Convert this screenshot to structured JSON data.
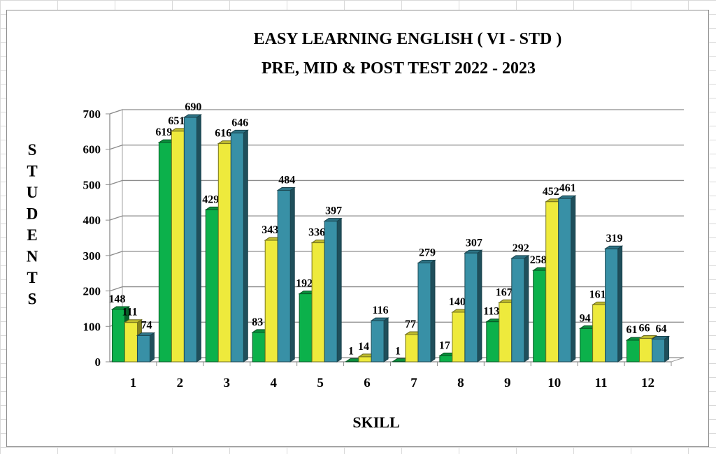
{
  "chart_data": {
    "type": "bar",
    "title": [
      "EASY LEARNING ENGLISH ( VI - STD )",
      "PRE, MID & POST TEST 2022 - 2023"
    ],
    "xlabel": "SKILL",
    "ylabel": "STUDENTS",
    "ylim": [
      0,
      700
    ],
    "yticks": [
      0,
      100,
      200,
      300,
      400,
      500,
      600,
      700
    ],
    "grid": true,
    "legend": "none",
    "categories": [
      "1",
      "2",
      "3",
      "4",
      "5",
      "6",
      "7",
      "8",
      "9",
      "10",
      "11",
      "12"
    ],
    "series": [
      {
        "values": [
          148,
          619,
          429,
          83,
          192,
          1,
          1,
          17,
          113,
          258,
          94,
          61
        ],
        "color": "#0cb14b"
      },
      {
        "values": [
          111,
          651,
          616,
          343,
          336,
          14,
          77,
          140,
          167,
          452,
          161,
          66
        ],
        "color": "#eeea3c"
      },
      {
        "values": [
          74,
          690,
          646,
          484,
          397,
          116,
          279,
          307,
          292,
          461,
          319,
          64
        ],
        "color": "#3890a6"
      }
    ]
  }
}
